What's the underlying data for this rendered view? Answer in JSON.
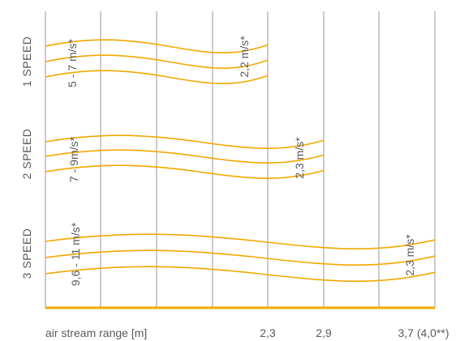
{
  "chart_data": {
    "type": "line",
    "xlabel": "air stream range [m]",
    "x_ticks": [
      {
        "value": 2.3,
        "label": "2,3"
      },
      {
        "value": 2.9,
        "label": "2,9"
      },
      {
        "value": 3.7,
        "label": "3,7 (4,0**)"
      }
    ],
    "grid": true,
    "line_color": "#f2a800",
    "grid_color": "#a8a8a8",
    "series": [
      {
        "name": "1 SPEED",
        "start_velocity_label": "5 - 7 m/s*",
        "end_velocity_label": "2,2 m/s*",
        "range_m": 2.3
      },
      {
        "name": "2 SPEED",
        "start_velocity_label": "7 - 9m/s*",
        "end_velocity_label": "2,3 m/s*",
        "range_m": 2.9
      },
      {
        "name": "3 SPEED",
        "start_velocity_label": "9,6 - 11 m/s*",
        "end_velocity_label": "2,3 m/s*",
        "range_m": 3.7
      }
    ]
  }
}
